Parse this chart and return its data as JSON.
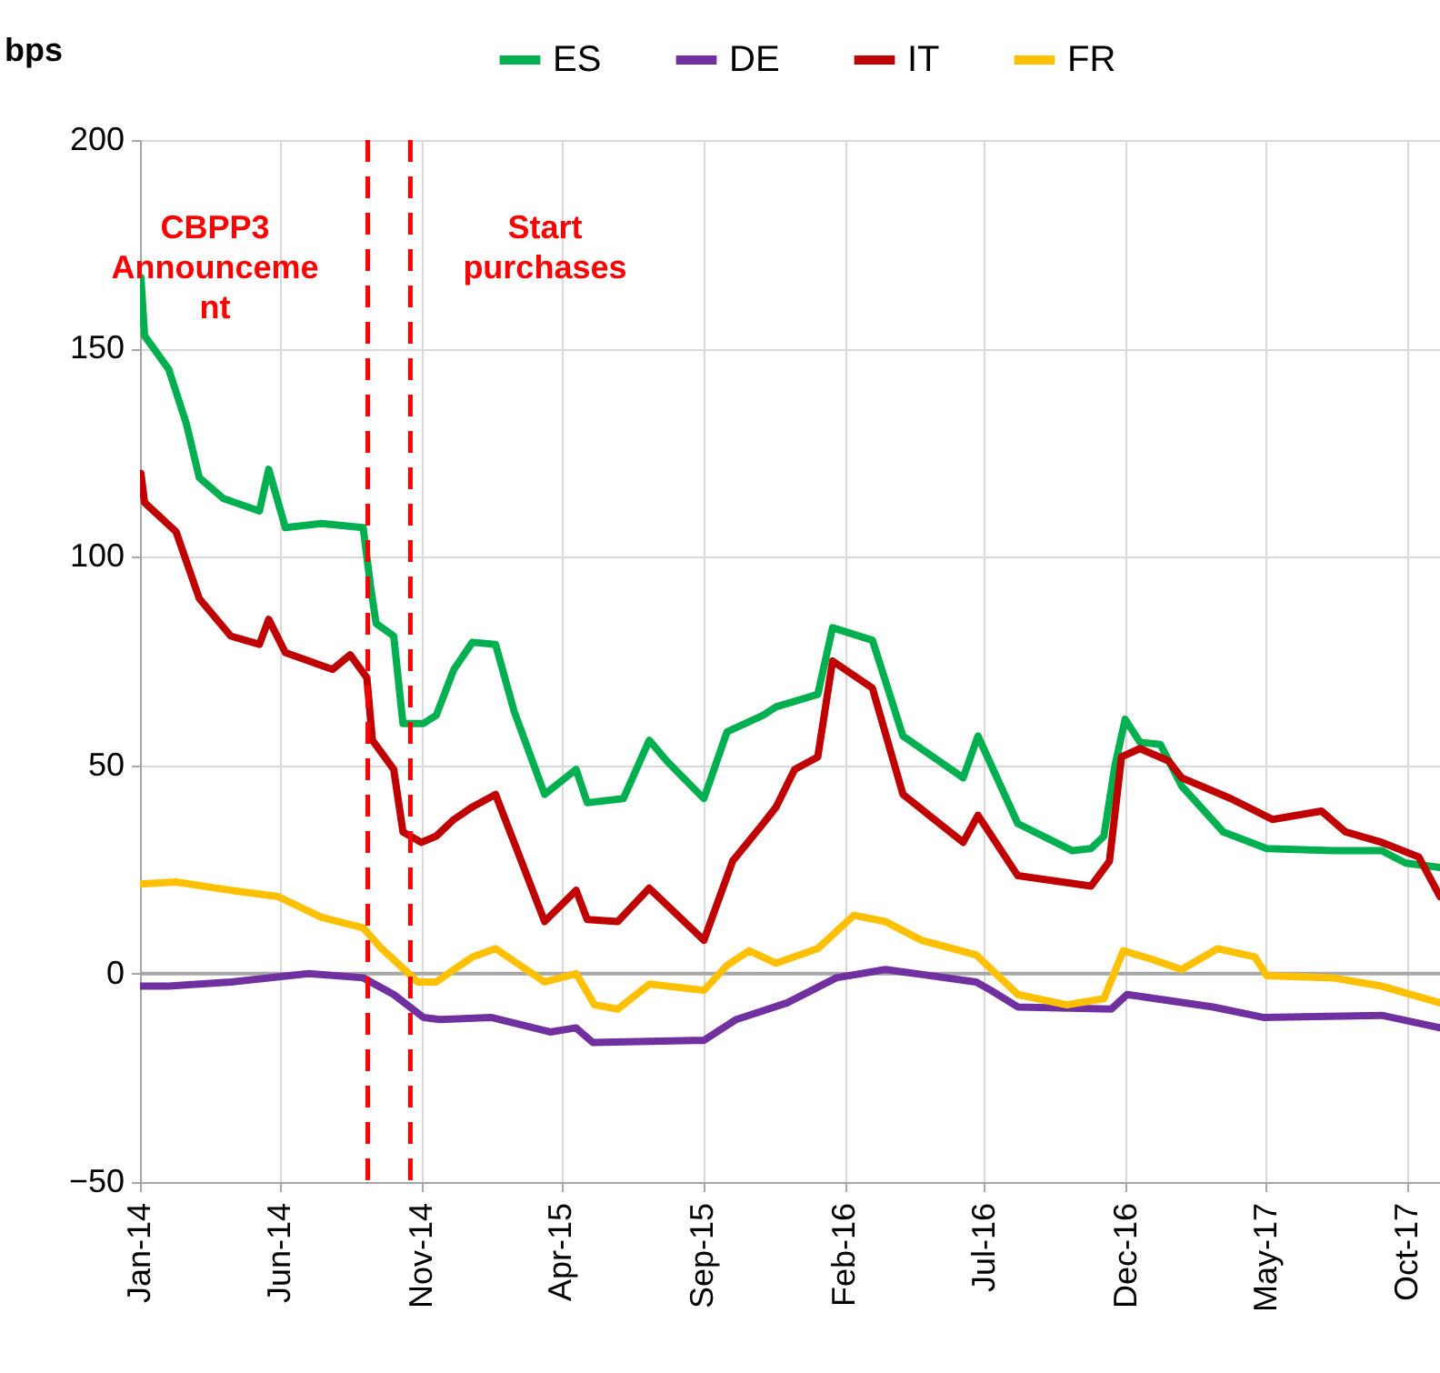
{
  "chart_data": {
    "type": "line",
    "ylabel": "bps",
    "xlim": [
      "2014-01-01",
      "2017-11-05"
    ],
    "ylim": [
      -50,
      200
    ],
    "yticks": [
      -50,
      0,
      50,
      100,
      150,
      200
    ],
    "xticks": [
      {
        "value": "2014-01-01",
        "label": "Jan-14"
      },
      {
        "value": "2014-06-01",
        "label": "Jun-14"
      },
      {
        "value": "2014-11-01",
        "label": "Nov-14"
      },
      {
        "value": "2015-04-01",
        "label": "Apr-15"
      },
      {
        "value": "2015-09-01",
        "label": "Sep-15"
      },
      {
        "value": "2016-02-01",
        "label": "Feb-16"
      },
      {
        "value": "2016-07-01",
        "label": "Jul-16"
      },
      {
        "value": "2016-12-01",
        "label": "Dec-16"
      },
      {
        "value": "2017-05-01",
        "label": "May-17"
      },
      {
        "value": "2017-10-01",
        "label": "Oct-17"
      }
    ],
    "grid": true,
    "legend": "top right",
    "ref_lines": [
      {
        "axis": "y",
        "value": 0,
        "color": "#a6a6a6"
      },
      {
        "axis": "x",
        "value": "2014-09-04",
        "label": "CBPP3 Announceme nt",
        "color": "#ff0000",
        "line_style": "dashed"
      },
      {
        "axis": "x",
        "value": "2014-10-20",
        "label": "Start purchases",
        "color": "#ff0000",
        "line_style": "dashed"
      }
    ],
    "series": [
      {
        "name": "ES",
        "color": "#00b050",
        "x": [
          "2014-01-02",
          "2014-01-06",
          "2014-02-01",
          "2014-02-20",
          "2014-03-06",
          "2014-04-01",
          "2014-05-10",
          "2014-05-20",
          "2014-06-07",
          "2014-07-16",
          "2014-08-30",
          "2014-09-07",
          "2014-09-13",
          "2014-10-02",
          "2014-10-12",
          "2014-11-03",
          "2014-11-17",
          "2014-12-06",
          "2014-12-26",
          "2015-01-20",
          "2015-02-09",
          "2015-03-14",
          "2015-04-17",
          "2015-04-29",
          "2015-06-07",
          "2015-07-05",
          "2015-07-24",
          "2015-09-02",
          "2015-09-27",
          "2015-11-05",
          "2015-11-19",
          "2016-01-03",
          "2016-01-19",
          "2016-03-02",
          "2016-04-04",
          "2016-06-08",
          "2016-06-24",
          "2016-08-06",
          "2016-10-04",
          "2016-10-24",
          "2016-11-07",
          "2016-11-19",
          "2016-11-30",
          "2016-12-16",
          "2017-01-07",
          "2017-01-30",
          "2017-03-16",
          "2017-05-02",
          "2017-07-12",
          "2017-09-03",
          "2017-09-29",
          "2017-11-05"
        ],
        "values": [
          167,
          153,
          145,
          132,
          119,
          114,
          111,
          121,
          107,
          108,
          107,
          93,
          84,
          81,
          60,
          60,
          62,
          73,
          79.5,
          79,
          63,
          43,
          49,
          41,
          42,
          56,
          51,
          42,
          58,
          62,
          64,
          67,
          83,
          80,
          57,
          47,
          57,
          36,
          29.5,
          30,
          33,
          50,
          61,
          55.5,
          55,
          45,
          34,
          30,
          29.5,
          29.5,
          26.5,
          25.5
        ]
      },
      {
        "name": "DE",
        "color": "#7030a0",
        "x": [
          "2014-01-02",
          "2014-02-01",
          "2014-04-09",
          "2014-07-02",
          "2014-08-30",
          "2014-10-02",
          "2014-11-03",
          "2014-11-21",
          "2015-01-15",
          "2015-03-20",
          "2015-04-17",
          "2015-05-05",
          "2015-09-02",
          "2015-10-07",
          "2015-12-01",
          "2016-01-23",
          "2016-03-16",
          "2016-06-22",
          "2016-07-08",
          "2016-08-06",
          "2016-11-15",
          "2016-12-02",
          "2017-03-05",
          "2017-04-28",
          "2017-09-03",
          "2017-11-05"
        ],
        "values": [
          -3,
          -3,
          -2,
          0,
          -1,
          -5,
          -10.5,
          -11,
          -10.5,
          -14,
          -13,
          -16.5,
          -16,
          -11,
          -7,
          -1,
          1,
          -2,
          -4,
          -8,
          -8.5,
          -5,
          -8,
          -10.5,
          -10,
          -13
        ]
      },
      {
        "name": "IT",
        "color": "#c00000",
        "x": [
          "2014-01-02",
          "2014-01-06",
          "2014-02-09",
          "2014-03-06",
          "2014-04-09",
          "2014-05-10",
          "2014-05-20",
          "2014-06-07",
          "2014-07-28",
          "2014-08-16",
          "2014-09-03",
          "2014-09-09",
          "2014-10-02",
          "2014-10-12",
          "2014-11-01",
          "2014-11-17",
          "2014-12-06",
          "2014-12-26",
          "2015-01-20",
          "2015-02-09",
          "2015-03-14",
          "2015-04-17",
          "2015-04-29",
          "2015-06-01",
          "2015-07-05",
          "2015-09-02",
          "2015-10-03",
          "2015-11-05",
          "2015-11-19",
          "2015-12-09",
          "2016-01-03",
          "2016-01-19",
          "2016-03-02",
          "2016-04-04",
          "2016-06-08",
          "2016-06-24",
          "2016-08-06",
          "2016-10-24",
          "2016-11-13",
          "2016-11-26",
          "2016-12-16",
          "2017-01-16",
          "2017-01-30",
          "2017-03-24",
          "2017-05-08",
          "2017-06-30",
          "2017-07-26",
          "2017-09-03",
          "2017-10-13",
          "2017-11-05"
        ],
        "values": [
          120,
          113,
          106,
          90,
          81,
          79,
          85,
          77,
          73,
          76.5,
          71,
          56,
          49,
          34,
          31.5,
          33,
          37,
          40,
          43,
          31.5,
          12.5,
          20,
          13,
          12.5,
          20.5,
          8,
          27,
          36,
          40,
          49,
          52,
          75,
          68.5,
          43,
          31.5,
          38,
          23.5,
          21,
          27,
          52,
          54,
          51,
          47,
          42,
          37,
          39,
          34,
          31.5,
          28,
          18.5
        ]
      },
      {
        "name": "FR",
        "color": "#ffc000",
        "x": [
          "2014-01-02",
          "2014-02-09",
          "2014-04-09",
          "2014-05-30",
          "2014-07-16",
          "2014-08-30",
          "2014-09-19",
          "2014-10-28",
          "2014-11-17",
          "2014-12-06",
          "2014-12-26",
          "2015-01-20",
          "2015-03-14",
          "2015-04-17",
          "2015-05-07",
          "2015-06-01",
          "2015-07-05",
          "2015-09-02",
          "2015-09-27",
          "2015-10-21",
          "2015-11-19",
          "2016-01-03",
          "2016-02-11",
          "2016-03-16",
          "2016-04-24",
          "2016-06-22",
          "2016-08-06",
          "2016-09-28",
          "2016-11-07",
          "2016-11-28",
          "2016-12-28",
          "2017-01-30",
          "2017-03-10",
          "2017-04-19",
          "2017-05-02",
          "2017-07-12",
          "2017-09-03",
          "2017-11-05"
        ],
        "values": [
          21.5,
          22,
          20,
          18.5,
          13.5,
          11,
          6,
          -2,
          -2,
          1,
          4,
          6,
          -2,
          0,
          -7.5,
          -8.5,
          -2.5,
          -4,
          2,
          5.5,
          2.5,
          6,
          14,
          12.5,
          8,
          4.5,
          -5,
          -7.5,
          -6,
          5.5,
          3.5,
          1,
          6,
          4,
          -0.5,
          -1,
          -3,
          -7
        ]
      }
    ]
  }
}
